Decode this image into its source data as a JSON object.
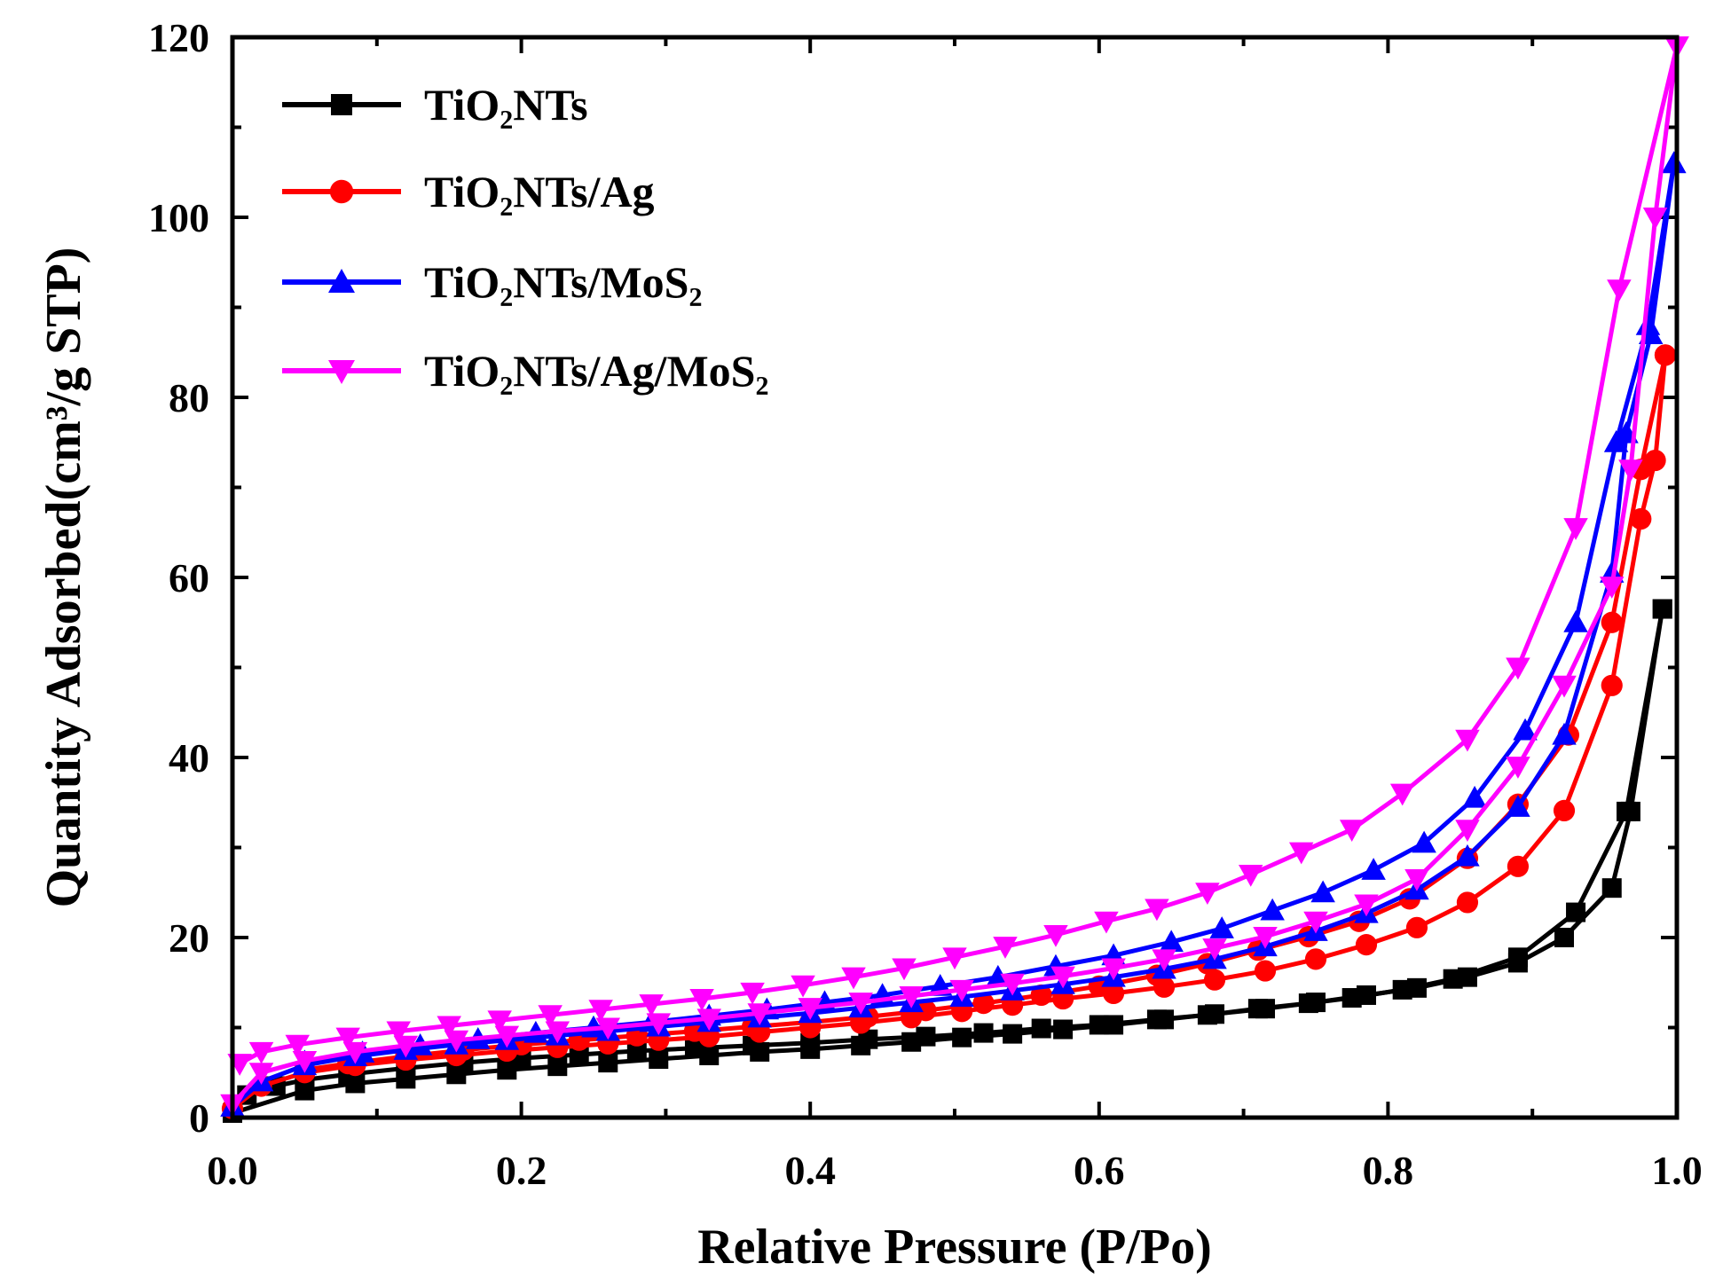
{
  "chart_data": {
    "type": "line",
    "xlabel": "Relative  Pressure (P/Po)",
    "ylabel": "Quantity  Adsorbed(cm³/g STP)",
    "xlim": [
      0.0,
      1.0
    ],
    "ylim": [
      0,
      120
    ],
    "xticks": [
      "0.0",
      "0.2",
      "0.4",
      "0.6",
      "0.8",
      "1.0"
    ],
    "yticks": [
      "0",
      "20",
      "40",
      "60",
      "80",
      "100",
      "120"
    ],
    "legend_position": "top-left",
    "series": [
      {
        "name": "TiO₂NTs",
        "color": "#000000",
        "marker": "square",
        "adsorption": [
          [
            0.0,
            0.5
          ],
          [
            0.05,
            3.0
          ],
          [
            0.085,
            3.8
          ],
          [
            0.12,
            4.3
          ],
          [
            0.155,
            4.8
          ],
          [
            0.19,
            5.3
          ],
          [
            0.225,
            5.7
          ],
          [
            0.26,
            6.1
          ],
          [
            0.295,
            6.5
          ],
          [
            0.33,
            6.9
          ],
          [
            0.365,
            7.3
          ],
          [
            0.4,
            7.6
          ],
          [
            0.435,
            8.0
          ],
          [
            0.47,
            8.4
          ],
          [
            0.505,
            8.9
          ],
          [
            0.54,
            9.3
          ],
          [
            0.575,
            9.8
          ],
          [
            0.61,
            10.3
          ],
          [
            0.645,
            10.9
          ],
          [
            0.68,
            11.5
          ],
          [
            0.715,
            12.1
          ],
          [
            0.75,
            12.8
          ],
          [
            0.785,
            13.6
          ],
          [
            0.82,
            14.4
          ],
          [
            0.855,
            15.6
          ],
          [
            0.89,
            17.2
          ],
          [
            0.922,
            20.0
          ],
          [
            0.955,
            25.5
          ],
          [
            0.968,
            34.0
          ],
          [
            0.99,
            56.5
          ]
        ],
        "desorption": [
          [
            0.99,
            56.5
          ],
          [
            0.965,
            34.0
          ],
          [
            0.93,
            22.8
          ],
          [
            0.89,
            17.8
          ],
          [
            0.845,
            15.4
          ],
          [
            0.81,
            14.2
          ],
          [
            0.775,
            13.3
          ],
          [
            0.745,
            12.7
          ],
          [
            0.71,
            12.1
          ],
          [
            0.675,
            11.4
          ],
          [
            0.64,
            10.9
          ],
          [
            0.6,
            10.3
          ],
          [
            0.56,
            9.9
          ],
          [
            0.52,
            9.4
          ],
          [
            0.48,
            9.0
          ],
          [
            0.44,
            8.7
          ],
          [
            0.4,
            8.3
          ],
          [
            0.36,
            8.0
          ],
          [
            0.32,
            7.7
          ],
          [
            0.28,
            7.4
          ],
          [
            0.24,
            7.0
          ],
          [
            0.2,
            6.6
          ],
          [
            0.16,
            6.1
          ],
          [
            0.12,
            5.5
          ],
          [
            0.08,
            4.8
          ],
          [
            0.05,
            4.2
          ],
          [
            0.03,
            3.5
          ],
          [
            0.01,
            2.5
          ]
        ]
      },
      {
        "name": "TiO₂NTs/Ag",
        "color": "#ff0000",
        "marker": "circle",
        "adsorption": [
          [
            0.0,
            1.0
          ],
          [
            0.02,
            3.5
          ],
          [
            0.05,
            5.0
          ],
          [
            0.085,
            5.8
          ],
          [
            0.12,
            6.4
          ],
          [
            0.155,
            6.9
          ],
          [
            0.19,
            7.4
          ],
          [
            0.225,
            7.8
          ],
          [
            0.26,
            8.2
          ],
          [
            0.295,
            8.6
          ],
          [
            0.33,
            9.0
          ],
          [
            0.365,
            9.5
          ],
          [
            0.4,
            10.0
          ],
          [
            0.435,
            10.5
          ],
          [
            0.47,
            11.1
          ],
          [
            0.505,
            11.8
          ],
          [
            0.54,
            12.5
          ],
          [
            0.575,
            13.2
          ],
          [
            0.61,
            13.8
          ],
          [
            0.645,
            14.5
          ],
          [
            0.68,
            15.3
          ],
          [
            0.715,
            16.3
          ],
          [
            0.75,
            17.6
          ],
          [
            0.785,
            19.2
          ],
          [
            0.82,
            21.1
          ],
          [
            0.855,
            23.9
          ],
          [
            0.89,
            27.9
          ],
          [
            0.922,
            34.1
          ],
          [
            0.955,
            48.0
          ],
          [
            0.975,
            66.5
          ],
          [
            0.985,
            73.0
          ],
          [
            0.992,
            84.7
          ]
        ],
        "desorption": [
          [
            0.992,
            84.7
          ],
          [
            0.975,
            72.0
          ],
          [
            0.955,
            55.0
          ],
          [
            0.925,
            42.5
          ],
          [
            0.89,
            34.8
          ],
          [
            0.855,
            28.8
          ],
          [
            0.815,
            24.3
          ],
          [
            0.78,
            21.8
          ],
          [
            0.745,
            20.1
          ],
          [
            0.71,
            18.6
          ],
          [
            0.675,
            17.1
          ],
          [
            0.64,
            15.8
          ],
          [
            0.6,
            14.6
          ],
          [
            0.56,
            13.6
          ],
          [
            0.52,
            12.7
          ],
          [
            0.48,
            11.9
          ],
          [
            0.44,
            11.2
          ],
          [
            0.4,
            10.6
          ],
          [
            0.36,
            10.1
          ],
          [
            0.32,
            9.6
          ],
          [
            0.28,
            9.1
          ],
          [
            0.24,
            8.6
          ],
          [
            0.2,
            8.1
          ],
          [
            0.16,
            7.5
          ],
          [
            0.12,
            6.8
          ],
          [
            0.08,
            6.0
          ],
          [
            0.05,
            5.3
          ]
        ]
      },
      {
        "name": "TiO₂NTs/MoS₂",
        "color": "#0000ff",
        "marker": "triangle-up",
        "adsorption": [
          [
            0.0,
            1.2
          ],
          [
            0.02,
            4.0
          ],
          [
            0.05,
            5.8
          ],
          [
            0.085,
            6.8
          ],
          [
            0.12,
            7.5
          ],
          [
            0.155,
            8.1
          ],
          [
            0.19,
            8.6
          ],
          [
            0.225,
            9.1
          ],
          [
            0.26,
            9.6
          ],
          [
            0.295,
            10.1
          ],
          [
            0.33,
            10.6
          ],
          [
            0.365,
            11.1
          ],
          [
            0.4,
            11.6
          ],
          [
            0.435,
            12.2
          ],
          [
            0.47,
            12.8
          ],
          [
            0.505,
            13.4
          ],
          [
            0.54,
            14.1
          ],
          [
            0.575,
            14.8
          ],
          [
            0.61,
            15.6
          ],
          [
            0.645,
            16.5
          ],
          [
            0.68,
            17.6
          ],
          [
            0.715,
            19.0
          ],
          [
            0.75,
            20.7
          ],
          [
            0.785,
            22.7
          ],
          [
            0.82,
            25.3
          ],
          [
            0.855,
            29.0
          ],
          [
            0.89,
            34.5
          ],
          [
            0.922,
            42.5
          ],
          [
            0.955,
            60.5
          ],
          [
            0.965,
            76.0
          ],
          [
            0.982,
            87.0
          ],
          [
            0.998,
            106.0
          ]
        ],
        "desorption": [
          [
            0.998,
            106.0
          ],
          [
            0.98,
            88.0
          ],
          [
            0.958,
            75.0
          ],
          [
            0.93,
            55.0
          ],
          [
            0.895,
            43.0
          ],
          [
            0.86,
            35.5
          ],
          [
            0.825,
            30.5
          ],
          [
            0.79,
            27.5
          ],
          [
            0.755,
            25.0
          ],
          [
            0.72,
            23.0
          ],
          [
            0.685,
            21.0
          ],
          [
            0.65,
            19.5
          ],
          [
            0.61,
            18.0
          ],
          [
            0.57,
            16.8
          ],
          [
            0.53,
            15.6
          ],
          [
            0.49,
            14.6
          ],
          [
            0.45,
            13.6
          ],
          [
            0.41,
            12.8
          ],
          [
            0.37,
            12.0
          ],
          [
            0.33,
            11.3
          ],
          [
            0.29,
            10.6
          ],
          [
            0.25,
            10.0
          ],
          [
            0.21,
            9.4
          ],
          [
            0.17,
            8.7
          ],
          [
            0.13,
            8.0
          ],
          [
            0.09,
            7.2
          ],
          [
            0.05,
            6.2
          ]
        ]
      },
      {
        "name": "TiO₂NTs/Ag/MoS₂",
        "color": "#ff00ff",
        "marker": "triangle-down",
        "adsorption": [
          [
            0.0,
            1.5
          ],
          [
            0.02,
            5.0
          ],
          [
            0.05,
            6.3
          ],
          [
            0.085,
            7.3
          ],
          [
            0.12,
            8.0
          ],
          [
            0.155,
            8.6
          ],
          [
            0.19,
            9.1
          ],
          [
            0.225,
            9.6
          ],
          [
            0.26,
            10.0
          ],
          [
            0.295,
            10.5
          ],
          [
            0.33,
            11.0
          ],
          [
            0.365,
            11.6
          ],
          [
            0.4,
            12.2
          ],
          [
            0.435,
            12.8
          ],
          [
            0.47,
            13.5
          ],
          [
            0.505,
            14.2
          ],
          [
            0.54,
            14.9
          ],
          [
            0.575,
            15.7
          ],
          [
            0.61,
            16.6
          ],
          [
            0.645,
            17.6
          ],
          [
            0.68,
            18.8
          ],
          [
            0.715,
            20.1
          ],
          [
            0.75,
            21.8
          ],
          [
            0.785,
            23.7
          ],
          [
            0.82,
            26.5
          ],
          [
            0.855,
            32.0
          ],
          [
            0.89,
            39.0
          ],
          [
            0.922,
            48.0
          ],
          [
            0.955,
            59.0
          ],
          [
            0.968,
            72.0
          ],
          [
            0.985,
            100.0
          ],
          [
            1.0,
            119.0
          ]
        ],
        "desorption": [
          [
            1.0,
            119.0
          ],
          [
            0.96,
            92.0
          ],
          [
            0.93,
            65.5
          ],
          [
            0.89,
            50.0
          ],
          [
            0.855,
            42.0
          ],
          [
            0.81,
            36.0
          ],
          [
            0.775,
            32.0
          ],
          [
            0.74,
            29.5
          ],
          [
            0.705,
            27.0
          ],
          [
            0.675,
            25.0
          ],
          [
            0.64,
            23.2
          ],
          [
            0.605,
            21.8
          ],
          [
            0.57,
            20.3
          ],
          [
            0.535,
            19.0
          ],
          [
            0.5,
            17.8
          ],
          [
            0.465,
            16.6
          ],
          [
            0.43,
            15.6
          ],
          [
            0.395,
            14.7
          ],
          [
            0.36,
            13.9
          ],
          [
            0.325,
            13.2
          ],
          [
            0.29,
            12.6
          ],
          [
            0.255,
            12.0
          ],
          [
            0.22,
            11.4
          ],
          [
            0.185,
            10.8
          ],
          [
            0.15,
            10.2
          ],
          [
            0.115,
            9.6
          ],
          [
            0.08,
            8.9
          ],
          [
            0.045,
            8.1
          ],
          [
            0.02,
            7.3
          ],
          [
            0.005,
            6.0
          ]
        ]
      }
    ]
  }
}
